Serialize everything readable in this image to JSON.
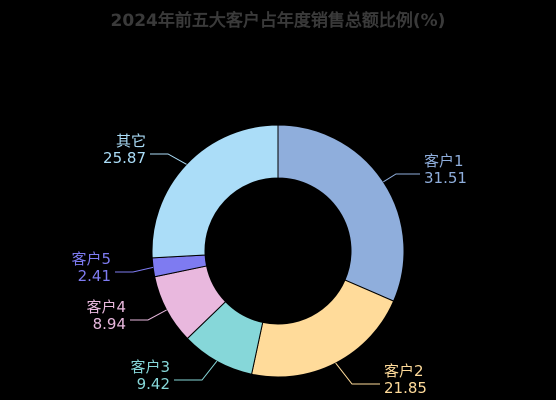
{
  "chart_data": {
    "type": "pie",
    "variant": "donut",
    "title": "2024年前五大客户占年度销售总额比例(%)",
    "background": "#000000",
    "slices": [
      {
        "name": "客户1",
        "value": 31.51,
        "color": "#8FAEDC"
      },
      {
        "name": "客户2",
        "value": 21.85,
        "color": "#FFDB9A"
      },
      {
        "name": "客户3",
        "value": 9.42,
        "color": "#86D7D9"
      },
      {
        "name": "客户4",
        "value": 8.94,
        "color": "#E9B8DE"
      },
      {
        "name": "客户5",
        "value": 2.41,
        "color": "#7E7BF1"
      },
      {
        "name": "其它",
        "value": 25.87,
        "color": "#ABDDF8"
      }
    ]
  }
}
